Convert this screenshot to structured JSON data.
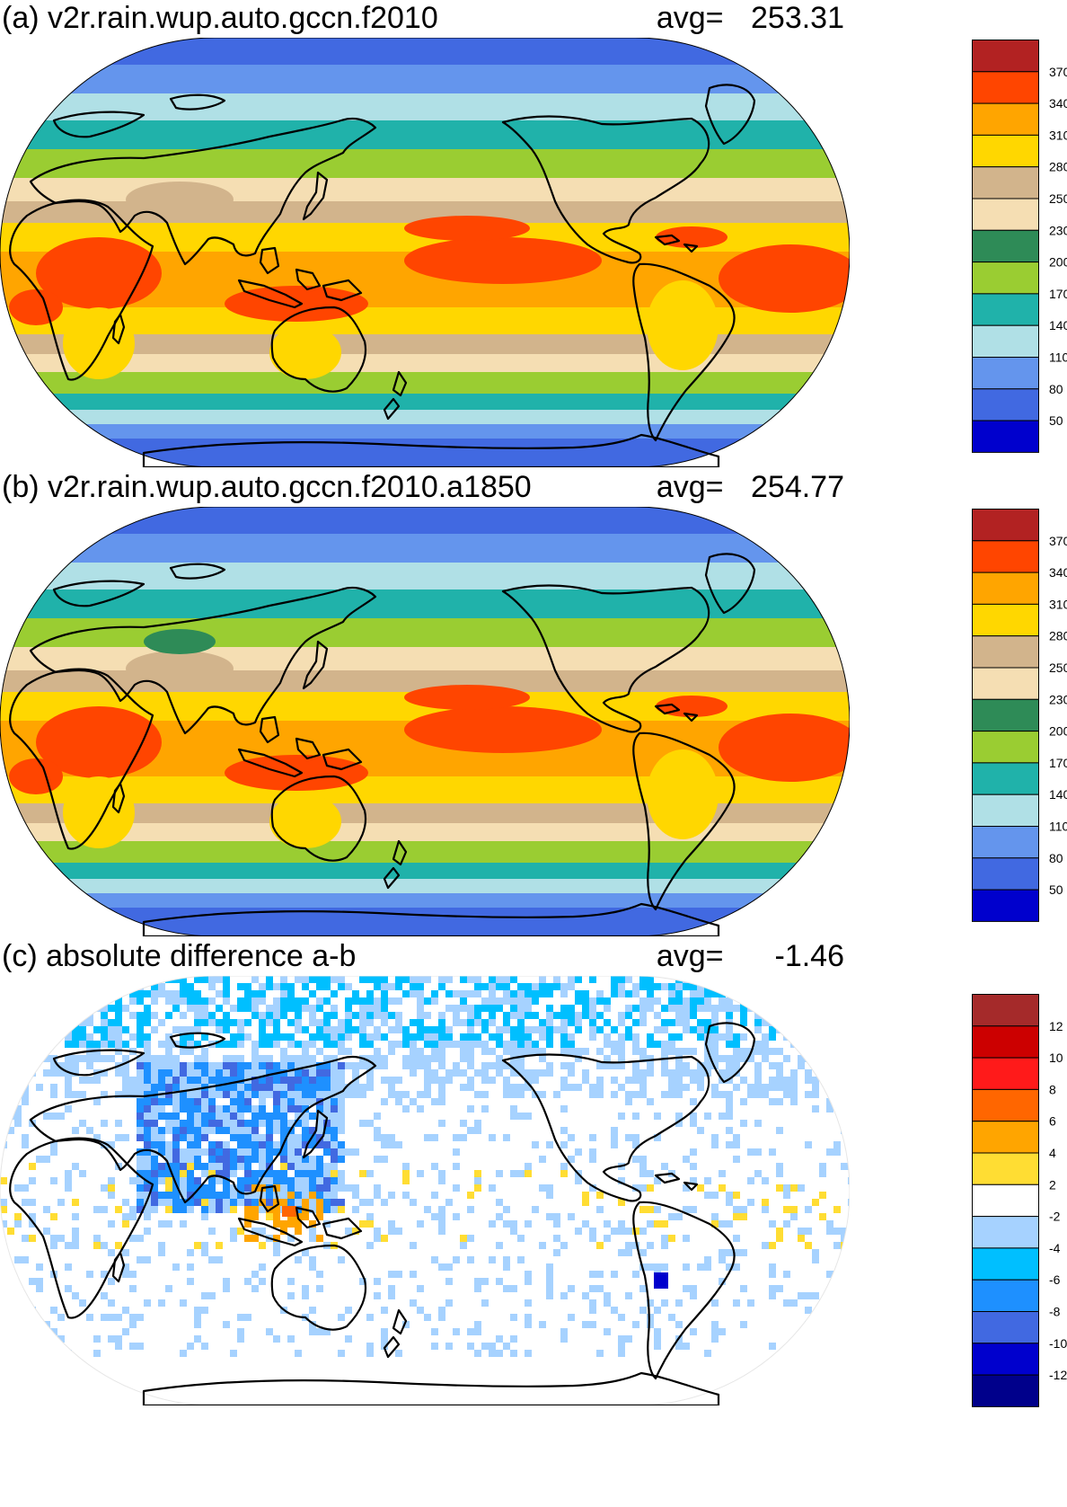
{
  "panels": [
    {
      "title": "(a) v2r.rain.wup.auto.gccn.f2010",
      "avg_label": "avg=",
      "avg_value": "253.31",
      "kind": "field",
      "colorbar": {
        "labels": [
          "370",
          "340",
          "310",
          "280",
          "250",
          "230",
          "200",
          "170",
          "140",
          "110",
          "80",
          "50"
        ],
        "colors": [
          "#b22222",
          "#ff4500",
          "#ffa500",
          "#ffd700",
          "#d2b48c",
          "#f5deb3",
          "#2e8b57",
          "#9acd32",
          "#20b2aa",
          "#b0e0e6",
          "#6495ed",
          "#4169e1",
          "#0000cd"
        ]
      }
    },
    {
      "title": "(b) v2r.rain.wup.auto.gccn.f2010.a1850",
      "avg_label": "avg=",
      "avg_value": "254.77",
      "kind": "field",
      "colorbar": {
        "labels": [
          "370",
          "340",
          "310",
          "280",
          "250",
          "230",
          "200",
          "170",
          "140",
          "110",
          "80",
          "50"
        ],
        "colors": [
          "#b22222",
          "#ff4500",
          "#ffa500",
          "#ffd700",
          "#d2b48c",
          "#f5deb3",
          "#2e8b57",
          "#9acd32",
          "#20b2aa",
          "#b0e0e6",
          "#6495ed",
          "#4169e1",
          "#0000cd"
        ]
      }
    },
    {
      "title": "(c) absolute difference a-b",
      "avg_label": "avg=",
      "avg_value": "-1.46",
      "kind": "difference",
      "colorbar": {
        "labels": [
          "12",
          "10",
          "8",
          "6",
          "4",
          "2",
          "-2",
          "-4",
          "-6",
          "-8",
          "-10",
          "-12"
        ],
        "colors": [
          "#a52a2a",
          "#cc0000",
          "#ff1a1a",
          "#ff6600",
          "#ffa500",
          "#ffdd33",
          "#ffffff",
          "#a6d2ff",
          "#00bfff",
          "#1e90ff",
          "#4169e1",
          "#0000cd",
          "#00008b"
        ]
      }
    }
  ]
}
